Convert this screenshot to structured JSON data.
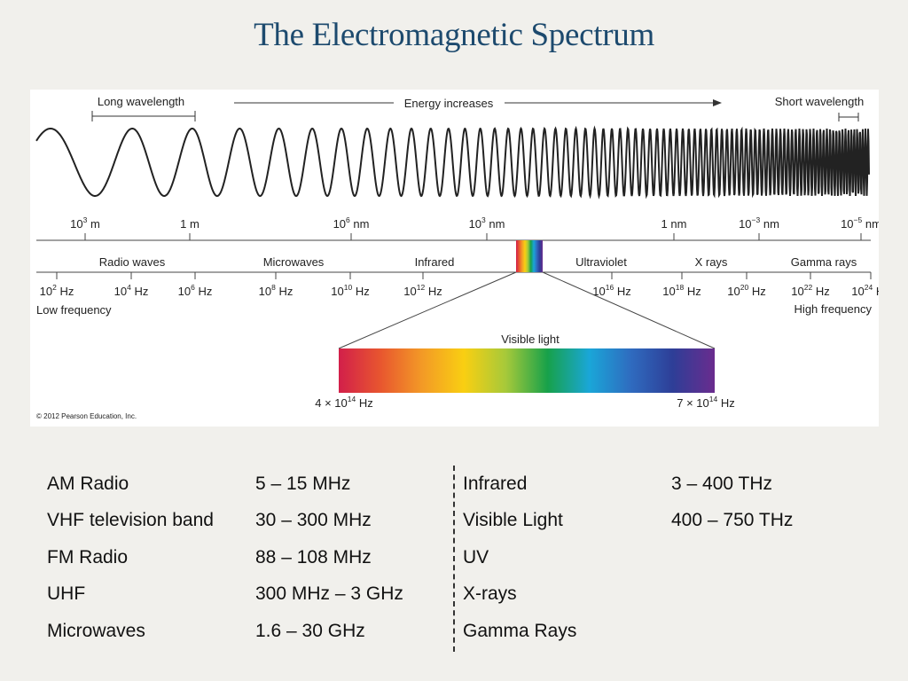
{
  "title": "The Electromagnetic Spectrum",
  "figure": {
    "long_wavelength": "Long wavelength",
    "energy_increases": "Energy increases",
    "short_wavelength": "Short wavelength",
    "low_frequency": "Low frequency",
    "high_frequency": "High frequency",
    "visible_light": "Visible light",
    "copyright": "© 2012 Pearson Education, Inc.",
    "wavelength_ticks": [
      {
        "base": "10",
        "exp": "3",
        "unit": "m"
      },
      {
        "base": "1 m",
        "exp": "",
        "unit": ""
      },
      {
        "base": "10",
        "exp": "6",
        "unit": "nm"
      },
      {
        "base": "10",
        "exp": "3",
        "unit": "nm"
      },
      {
        "base": "1 nm",
        "exp": "",
        "unit": ""
      },
      {
        "base": "10",
        "exp": "−3",
        "unit": "nm"
      },
      {
        "base": "10",
        "exp": "−5",
        "unit": "nm"
      }
    ],
    "regions": [
      "Radio waves",
      "Microwaves",
      "Infrared",
      "Ultraviolet",
      "X rays",
      "Gamma rays"
    ],
    "frequency_ticks": [
      {
        "base": "10",
        "exp": "2",
        "unit": "Hz"
      },
      {
        "base": "10",
        "exp": "4",
        "unit": "Hz"
      },
      {
        "base": "10",
        "exp": "6",
        "unit": "Hz"
      },
      {
        "base": "10",
        "exp": "8",
        "unit": "Hz"
      },
      {
        "base": "10",
        "exp": "10",
        "unit": "Hz"
      },
      {
        "base": "10",
        "exp": "12",
        "unit": "Hz"
      },
      {
        "base": "10",
        "exp": "16",
        "unit": "Hz"
      },
      {
        "base": "10",
        "exp": "18",
        "unit": "Hz"
      },
      {
        "base": "10",
        "exp": "20",
        "unit": "Hz"
      },
      {
        "base": "10",
        "exp": "22",
        "unit": "Hz"
      },
      {
        "base": "10",
        "exp": "24",
        "unit": "Hz"
      }
    ],
    "visible_low": {
      "base": "4 × 10",
      "exp": "14",
      "unit": "Hz"
    },
    "visible_high": {
      "base": "7 × 10",
      "exp": "14",
      "unit": "Hz"
    },
    "spectrum_colors": [
      "#d21f4a",
      "#e8562f",
      "#f39a26",
      "#f9cf12",
      "#a6c93a",
      "#17a14a",
      "#1aa6d8",
      "#2f6bbf",
      "#2e3e97",
      "#6a2c8e"
    ]
  },
  "table": {
    "left": [
      {
        "name": "AM Radio",
        "range": "5 – 15 MHz"
      },
      {
        "name": "VHF television band",
        "range": "30 – 300 MHz"
      },
      {
        "name": "FM Radio",
        "range": "88 – 108 MHz"
      },
      {
        "name": "UHF",
        "range": "300 MHz – 3 GHz"
      },
      {
        "name": "Microwaves",
        "range": "1.6 – 30 GHz"
      }
    ],
    "right": [
      {
        "name": "Infrared",
        "range": "3 – 400 THz"
      },
      {
        "name": "Visible Light",
        "range": "400 – 750 THz"
      },
      {
        "name": "UV",
        "range": ""
      },
      {
        "name": "X-rays",
        "range": ""
      },
      {
        "name": "Gamma Rays",
        "range": ""
      }
    ]
  }
}
